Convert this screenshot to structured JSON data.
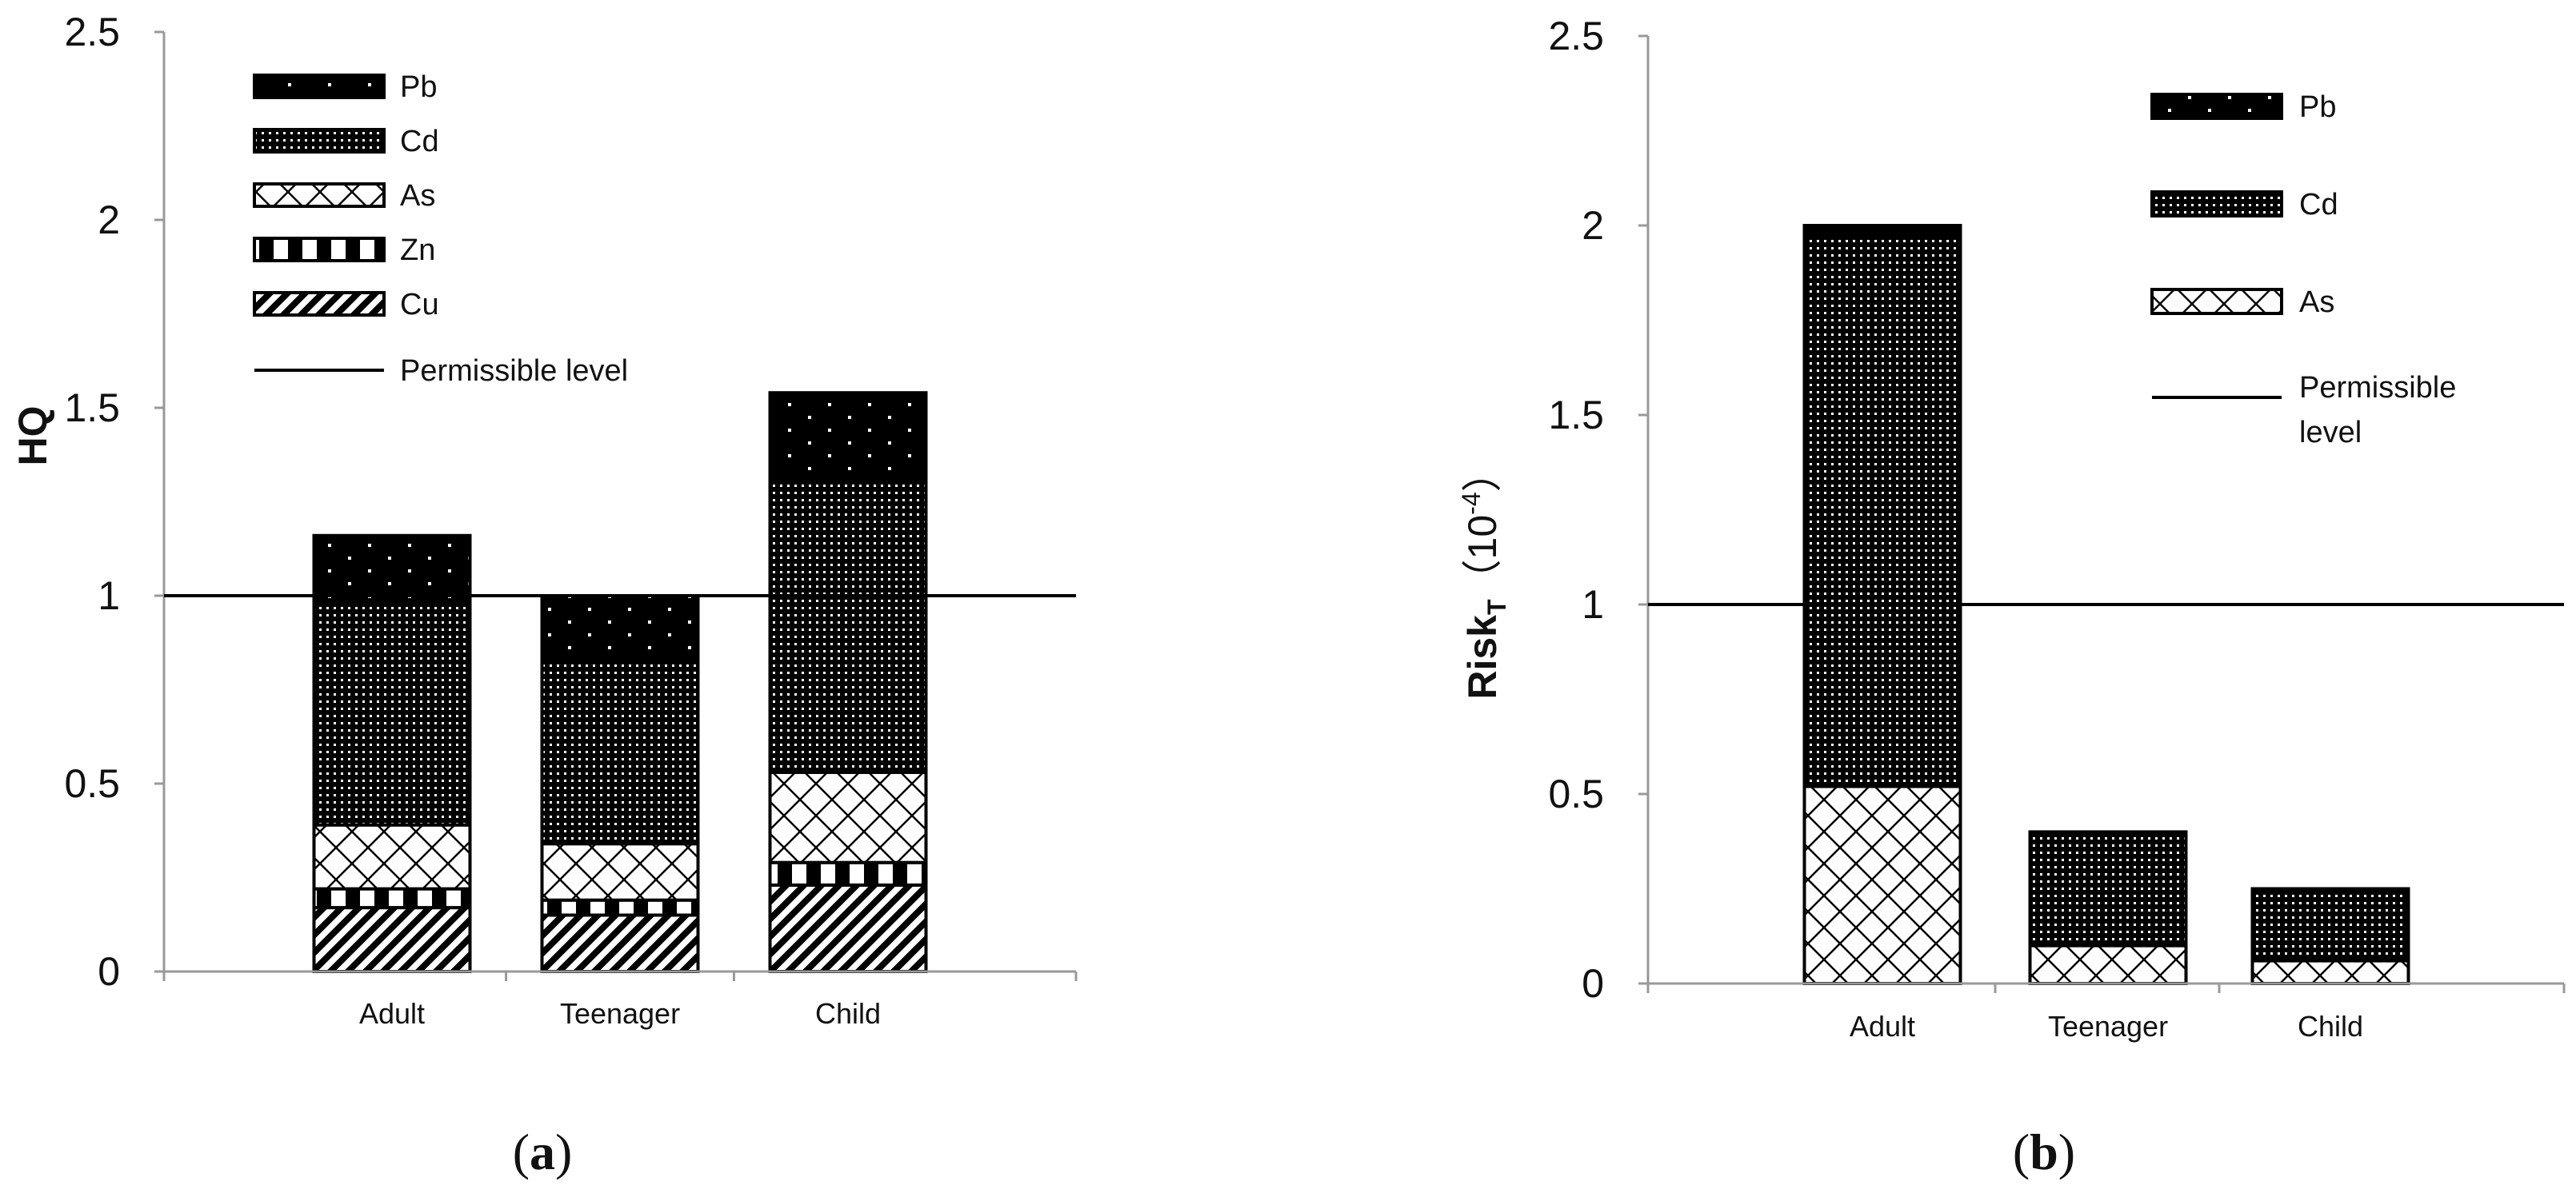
{
  "chart_data": [
    {
      "type": "bar",
      "stacked": true,
      "panel_label": "(a)",
      "panel_letter": "a",
      "ylabel": "HQ",
      "ylim": [
        0,
        2.5
      ],
      "yticks": [
        "0",
        "0.5",
        "1",
        "1.5",
        "2",
        "2.5"
      ],
      "categories": [
        "Adult",
        "Teenager",
        "Child"
      ],
      "permissible_level": 1,
      "series": [
        {
          "name": "Cu",
          "values": [
            0.17,
            0.15,
            0.23
          ],
          "pattern": "hatch"
        },
        {
          "name": "Zn",
          "values": [
            0.05,
            0.04,
            0.06
          ],
          "pattern": "checker"
        },
        {
          "name": "As",
          "values": [
            0.17,
            0.15,
            0.24
          ],
          "pattern": "cross"
        },
        {
          "name": "Cd",
          "values": [
            0.59,
            0.49,
            0.78
          ],
          "pattern": "densedots"
        },
        {
          "name": "Pb",
          "values": [
            0.18,
            0.17,
            0.23
          ],
          "pattern": "sparsedots"
        }
      ],
      "legend": {
        "placement": "top-left",
        "entries": [
          "Pb",
          "Cd",
          "As",
          "Zn",
          "Cu",
          "Permissible level"
        ]
      },
      "grid": false
    },
    {
      "type": "bar",
      "stacked": true,
      "panel_label": "(b)",
      "panel_letter": "b",
      "ylabel": "Risk",
      "ylabel_sub": "T",
      "ylabel_unit_open": "（10",
      "ylabel_unit_exp": "-4",
      "ylabel_unit_close": "）",
      "ylim": [
        0,
        2.5
      ],
      "yticks": [
        "0",
        "0.5",
        "1",
        "1.5",
        "2",
        "2.5"
      ],
      "categories": [
        "Adult",
        "Teenager",
        "Child"
      ],
      "permissible_level": 1,
      "series": [
        {
          "name": "As",
          "values": [
            0.52,
            0.1,
            0.06
          ],
          "pattern": "cross"
        },
        {
          "name": "Cd",
          "values": [
            1.45,
            0.3,
            0.19
          ],
          "pattern": "densedots"
        },
        {
          "name": "Pb",
          "values": [
            0.03,
            0.0,
            0.0
          ],
          "pattern": "sparsedots"
        }
      ],
      "legend": {
        "placement": "top-right",
        "entries": [
          "Pb",
          "Cd",
          "As"
        ],
        "line_entry_lines": [
          "Permissible",
          "level"
        ]
      },
      "grid": false
    }
  ]
}
